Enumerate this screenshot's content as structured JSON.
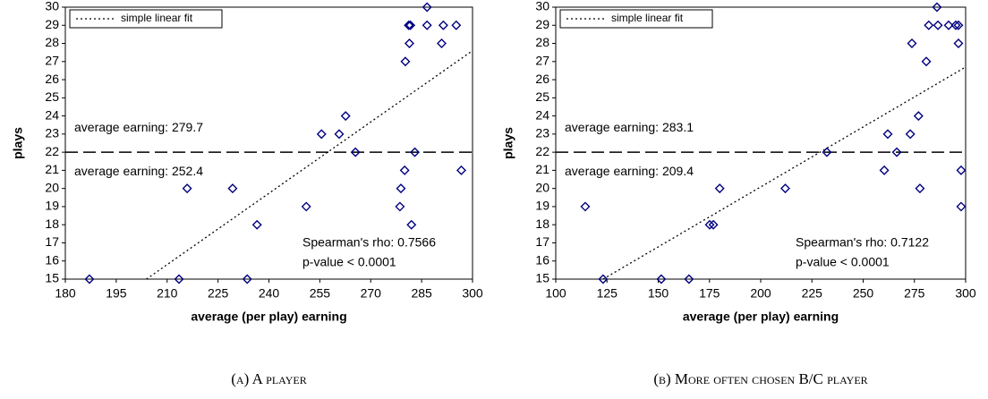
{
  "chart_data": [
    {
      "type": "scatter",
      "x_label": "average (per play) earning",
      "y_label": "plays",
      "caption": "(a) A player",
      "xlim": [
        180,
        300
      ],
      "xticks": [
        180,
        195,
        210,
        225,
        240,
        255,
        270,
        285,
        300
      ],
      "ylim": [
        15,
        30
      ],
      "yticks": [
        15,
        16,
        17,
        18,
        19,
        20,
        21,
        22,
        23,
        24,
        25,
        26,
        27,
        28,
        29,
        30
      ],
      "series": [
        {
          "color": "#000080",
          "x": [
            187.1,
            215.9,
            213.5,
            229.3,
            233.6,
            236.5,
            251,
            255.5,
            260.7,
            262.6,
            265.5,
            280.2,
            281.4,
            281.7,
            281.2,
            286.6,
            286.6,
            291.4,
            290.9,
            295.2,
            283,
            280,
            278.9,
            278.6,
            282,
            296.7
          ],
          "values": [
            15,
            20,
            15,
            20,
            15,
            18,
            19,
            23,
            23,
            24,
            22,
            27,
            28,
            29,
            29,
            30,
            29,
            29,
            28,
            29,
            22,
            21,
            20,
            19,
            18,
            21
          ]
        }
      ],
      "fit": {
        "name": "simple linear fit",
        "x": [
          203.9,
          300
        ],
        "y": [
          15,
          27.6
        ]
      },
      "hline": 22,
      "annotations": [
        "average earning: 279.7",
        "average earning: 252.4",
        "Spearman's rho: 0.7566",
        "p-value < 0.0001"
      ]
    },
    {
      "type": "scatter",
      "x_label": "average (per play) earning",
      "y_label": "plays",
      "caption": "(b) More often chosen B/C player",
      "xlim": [
        100,
        300
      ],
      "xticks": [
        100,
        125,
        150,
        175,
        200,
        225,
        250,
        275,
        300
      ],
      "ylim": [
        15,
        30
      ],
      "yticks": [
        15,
        16,
        17,
        18,
        19,
        20,
        21,
        22,
        23,
        24,
        25,
        26,
        27,
        28,
        29,
        30
      ],
      "series": [
        {
          "color": "#000080",
          "x": [
            114.4,
            123.1,
            151.5,
            165,
            175.1,
            176.9,
            180,
            212,
            232.3,
            260.3,
            262,
            266.4,
            273,
            277,
            273.8,
            277.7,
            280.8,
            282,
            286,
            286.5,
            291.7,
            295.2,
            296.5,
            296.5,
            297.8,
            297.8
          ],
          "values": [
            19,
            15,
            15,
            15,
            18,
            18,
            20,
            20,
            22,
            21,
            23,
            22,
            23,
            24,
            28,
            20,
            27,
            29,
            30,
            29,
            29,
            29,
            29,
            28,
            21,
            19
          ]
        }
      ],
      "fit": {
        "name": "simple linear fit",
        "x": [
          123.1,
          300
        ],
        "y": [
          15,
          26.7
        ]
      },
      "hline": 22,
      "annotations": [
        "average earning: 283.1",
        "average earning: 209.4",
        "Spearman's rho: 0.7122",
        "p-value < 0.0001"
      ]
    }
  ]
}
